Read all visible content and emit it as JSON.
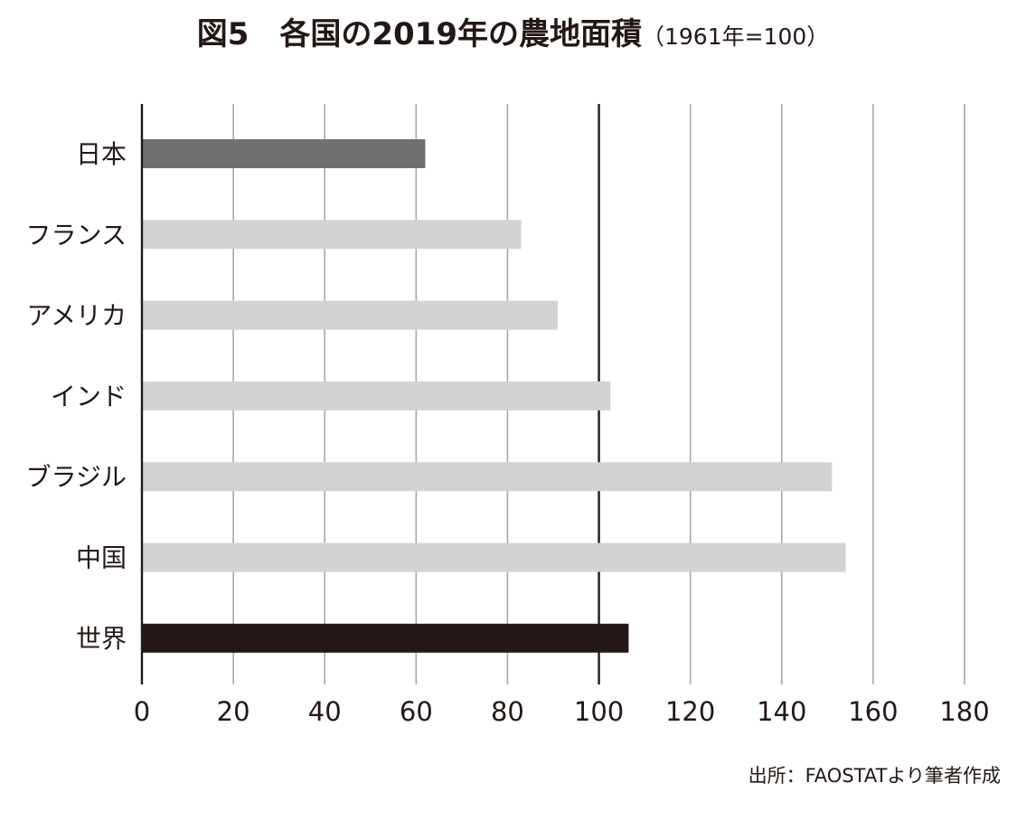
{
  "chart_data": {
    "type": "bar",
    "orientation": "horizontal",
    "title": "図5　各国の2019年の農地面積",
    "subtitle": "（1961年=100）",
    "categories": [
      "日本",
      "フランス",
      "アメリカ",
      "インド",
      "ブラジル",
      "中国",
      "世界"
    ],
    "values": [
      62,
      83,
      91,
      102.5,
      151,
      154,
      106.5
    ],
    "bar_colors": [
      "#717071",
      "#d3d3d3",
      "#d3d3d3",
      "#d3d3d3",
      "#d3d3d3",
      "#d3d3d3",
      "#231815"
    ],
    "xlim": [
      0,
      180
    ],
    "xticks": [
      0,
      20,
      40,
      60,
      80,
      100,
      120,
      140,
      160,
      180
    ],
    "reference_line": 100,
    "grid": true,
    "xlabel": "",
    "ylabel": ""
  },
  "source": "出所：FAOSTATより筆者作成"
}
